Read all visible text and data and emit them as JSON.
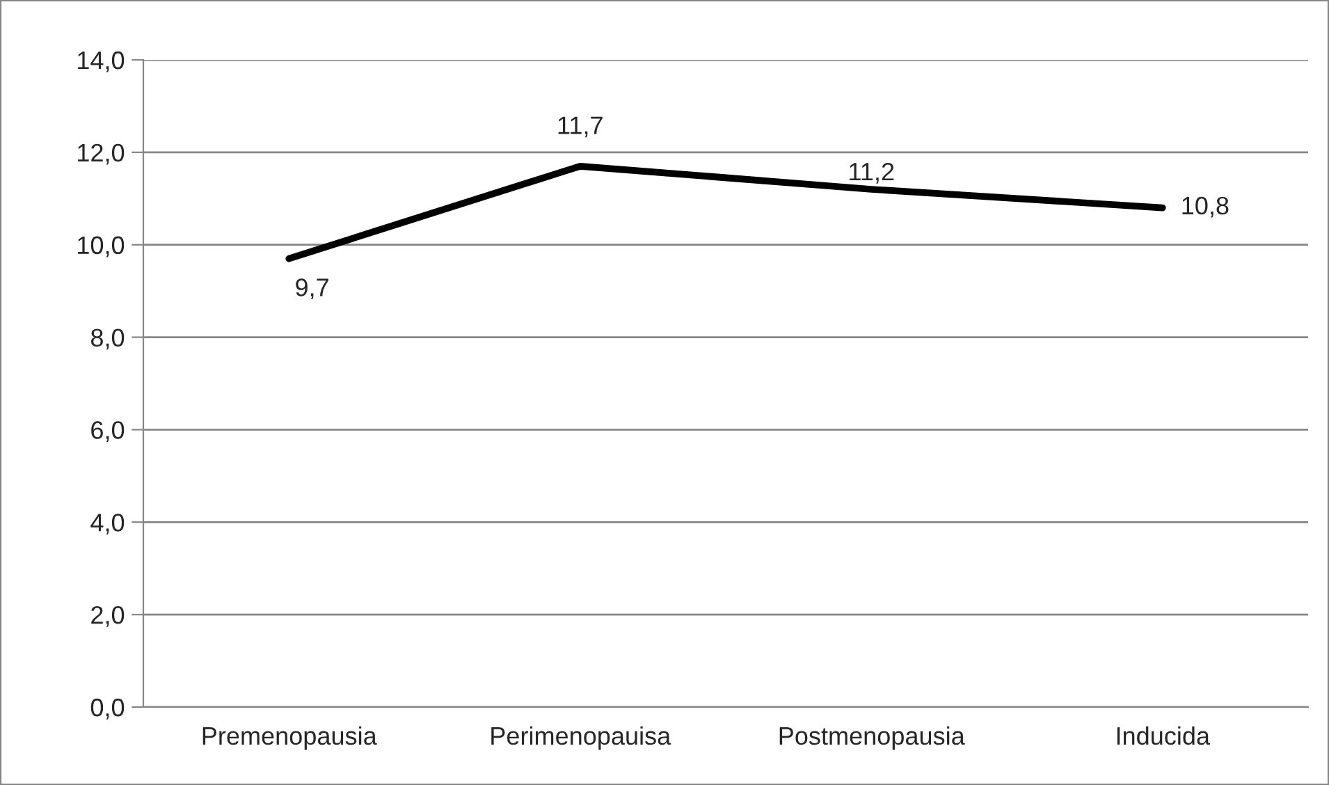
{
  "chart_data": {
    "type": "line",
    "categories": [
      "Premenopausia",
      "Perimenopauisa",
      "Postmenopausia",
      "Inducida"
    ],
    "series": [
      {
        "color": "#000000",
        "values": [
          9.7,
          11.7,
          11.2,
          10.8
        ],
        "value_labels": [
          "9,7",
          "11,7",
          "11,2",
          "10,8"
        ]
      }
    ],
    "ylim": [
      0,
      14
    ],
    "yticks": [
      {
        "value": 0,
        "label": "0,0"
      },
      {
        "value": 2,
        "label": "2,0"
      },
      {
        "value": 4,
        "label": "4,0"
      },
      {
        "value": 6,
        "label": "6,0"
      },
      {
        "value": 8,
        "label": "8,0"
      },
      {
        "value": 10,
        "label": "10,0"
      },
      {
        "value": 12,
        "label": "12,0"
      },
      {
        "value": 14,
        "label": "14,0"
      }
    ],
    "grid": "y",
    "marker": "none",
    "line_style": "solid",
    "legend": false
  }
}
